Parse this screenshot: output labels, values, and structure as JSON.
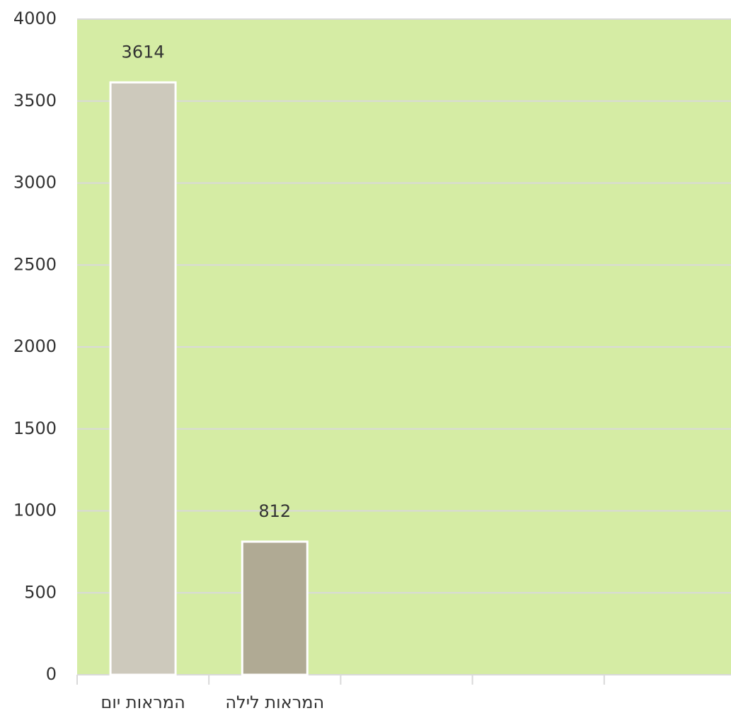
{
  "chart_data": {
    "type": "bar",
    "categories": [
      "המראות יום",
      "המראות לילה",
      null,
      null,
      null
    ],
    "values": [
      3614,
      812,
      null,
      null,
      null
    ],
    "colors": [
      "#cdc9bc",
      "#b0aa94",
      null,
      null,
      null
    ],
    "background": "#d5eca4",
    "ylim": [
      0,
      4000
    ],
    "yticks": [
      0,
      500,
      1000,
      1500,
      2000,
      2500,
      3000,
      3500,
      4000
    ],
    "grid": true,
    "data_labels": true
  }
}
